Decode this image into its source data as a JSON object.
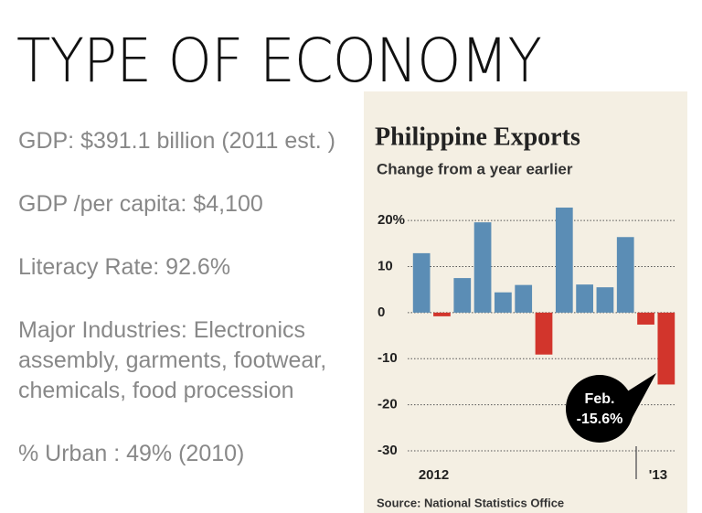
{
  "slide": {
    "title": "TYPE OF ECONOMY",
    "paragraphs": [
      "GDP: $391.1 billion (2011 est. )",
      "GDP /per capita: $4,100",
      "Literacy Rate: 92.6%",
      "Major Industries: Electronics assembly, garments, footwear, chemicals, food procession",
      "% Urban : 49% (2010)"
    ]
  },
  "chart_data": {
    "type": "bar",
    "title": "Philippine Exports",
    "subtitle": "Change from a year earlier",
    "source": "Source: National Statistics Office",
    "annotation": [
      "Feb.",
      "-15.6%"
    ],
    "categories": [
      "2012",
      null,
      null,
      null,
      null,
      null,
      null,
      null,
      null,
      null,
      null,
      "'13",
      null
    ],
    "values": [
      12.9,
      -0.8,
      7.5,
      19.6,
      4.4,
      6,
      -9.1,
      22.8,
      6.1,
      5.5,
      16.4,
      -2.6,
      -15.6
    ],
    "colors": {
      "positive": "#5b8db5",
      "negative": "#d2352c"
    },
    "ylim": [
      -30,
      23
    ],
    "yticks": [
      -30,
      -20,
      -10,
      0,
      10,
      {
        "value": 20,
        "label": "20%"
      }
    ],
    "grid": true
  }
}
